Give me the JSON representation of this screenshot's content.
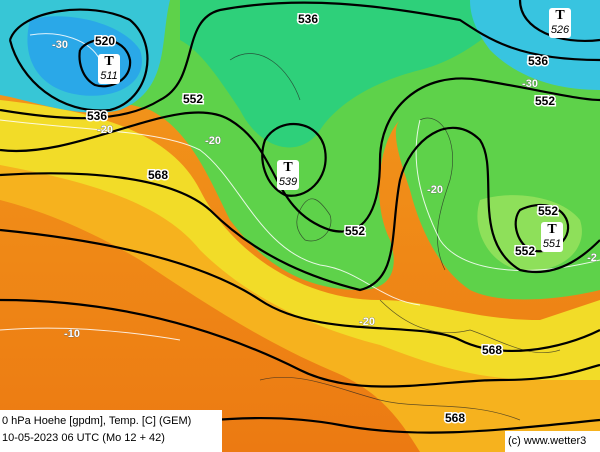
{
  "map": {
    "contour_labels": [
      "536",
      "520",
      "536",
      "552",
      "568",
      "552",
      "536",
      "552",
      "552",
      "552",
      "568",
      "568"
    ],
    "lows": [
      {
        "symbol": "T",
        "value": "511"
      },
      {
        "symbol": "T",
        "value": "539"
      },
      {
        "symbol": "T",
        "value": "526"
      },
      {
        "symbol": "T",
        "value": "551"
      }
    ],
    "isotherm_labels": [
      "-30",
      "-20",
      "-20",
      "-20",
      "-20",
      "-30",
      "-10",
      "-2"
    ]
  },
  "caption": {
    "line1": "0 hPa Hoehe [gpdm], Temp. [C] (GEM)",
    "line2": "10-05-2023 06 UTC (Mo 12 + 42)"
  },
  "copyright": "(c) www.wetter3"
}
